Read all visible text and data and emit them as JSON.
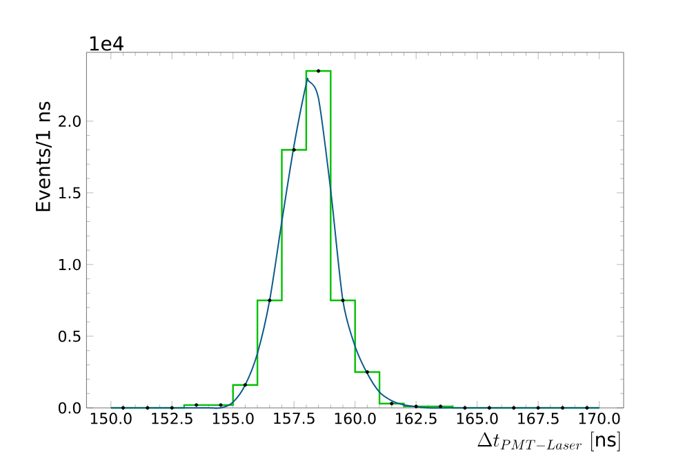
{
  "chart_data": {
    "type": "histogram",
    "xlabel": "\\Delta t_{PMT-Laser}\\ [\\mathrm{ns}]",
    "ylabel": "Events/1 ns",
    "annotations": [
      "1e4"
    ],
    "xlim": [
      149,
      171
    ],
    "ylim": [
      0,
      2.48
    ],
    "xticks": [
      {
        "value": 150,
        "label": "150.0"
      },
      {
        "value": 152.5,
        "label": "152.5"
      },
      {
        "value": 155,
        "label": "155.0"
      },
      {
        "value": 157.5,
        "label": "157.5"
      },
      {
        "value": 160,
        "label": "160.0"
      },
      {
        "value": 162.5,
        "label": "162.5"
      },
      {
        "value": 165,
        "label": "165.0"
      },
      {
        "value": 167.5,
        "label": "167.5"
      },
      {
        "value": 170,
        "label": "170.0"
      }
    ],
    "yticks": [
      {
        "value": 0,
        "label": "0.0"
      },
      0.5,
      {
        "value": 1,
        "label": "1.0"
      },
      1.5,
      {
        "value": 2,
        "label": "2.0"
      }
    ],
    "grid": false,
    "series": [
      {
        "color": "#00c000",
        "bins": [
          150,
          151,
          152,
          153,
          154,
          155,
          156,
          157,
          158,
          159,
          160,
          161,
          162,
          163,
          164,
          165,
          166,
          167,
          168,
          169,
          170
        ],
        "values": [
          0,
          0,
          0,
          0.02,
          0.02,
          0.16,
          0.75,
          1.8,
          2.35,
          0.75,
          0.25,
          0.03,
          0.01,
          0.01,
          0,
          0,
          0,
          0,
          0,
          0
        ]
      },
      {
        "type": "scatter",
        "color": "#000000",
        "marker": "circle",
        "x": [
          150.5,
          151.5,
          152.5,
          153.5,
          154.5,
          155.5,
          156.5,
          157.5,
          158.5,
          159.5,
          160.5,
          161.5,
          162.5,
          163.5,
          164.5,
          165.5,
          166.5,
          167.5,
          168.5,
          169.5
        ],
        "values": [
          0,
          0,
          0,
          0.02,
          0.02,
          0.16,
          0.75,
          1.8,
          2.35,
          0.75,
          0.25,
          0.03,
          0.01,
          0.01,
          0,
          0,
          0,
          0,
          0,
          0
        ]
      },
      {
        "type": "line",
        "color": "#0a5a8a",
        "x": [
          150,
          153,
          154,
          154.5,
          155,
          155.5,
          156,
          156.5,
          157,
          157.5,
          158,
          158.1,
          158.5,
          159,
          159.5,
          160,
          160.5,
          161,
          161.5,
          162,
          163,
          164,
          170
        ],
        "values": [
          0,
          0,
          0,
          0,
          0.04,
          0.16,
          0.38,
          0.75,
          1.3,
          1.83,
          2.26,
          2.28,
          2.16,
          1.52,
          0.75,
          0.43,
          0.24,
          0.11,
          0.05,
          0.02,
          0,
          0,
          0
        ]
      }
    ]
  }
}
